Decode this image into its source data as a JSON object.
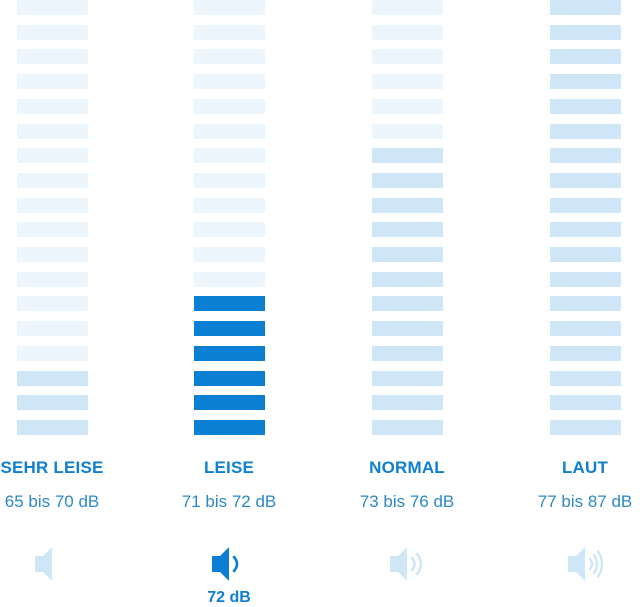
{
  "colors": {
    "active": "#0a7fd4",
    "dark_tint": "#cfe6f7",
    "light_tint": "#edf6fd",
    "label": "#0f80cf",
    "range": "#2c89c6",
    "icon_active": "#0a7fd4",
    "icon_inactive": "#cfe6f7"
  },
  "segment_count": 18,
  "levels": [
    {
      "label": "SEHR LEISE",
      "range": "65 bis 70 dB",
      "icon": "speaker-off-icon",
      "filled_segments": 3,
      "fill_state": "tint"
    },
    {
      "label": "LEISE",
      "range": "71 bis 72 dB",
      "icon": "speaker-low-icon",
      "filled_segments": 6,
      "fill_state": "active",
      "current_value": "72 dB"
    },
    {
      "label": "NORMAL",
      "range": "73 bis 76 dB",
      "icon": "speaker-medium-icon",
      "filled_segments": 12,
      "fill_state": "tint"
    },
    {
      "label": "LAUT",
      "range": "77 bis 87 dB",
      "icon": "speaker-high-icon",
      "filled_segments": 18,
      "fill_state": "tint"
    }
  ]
}
